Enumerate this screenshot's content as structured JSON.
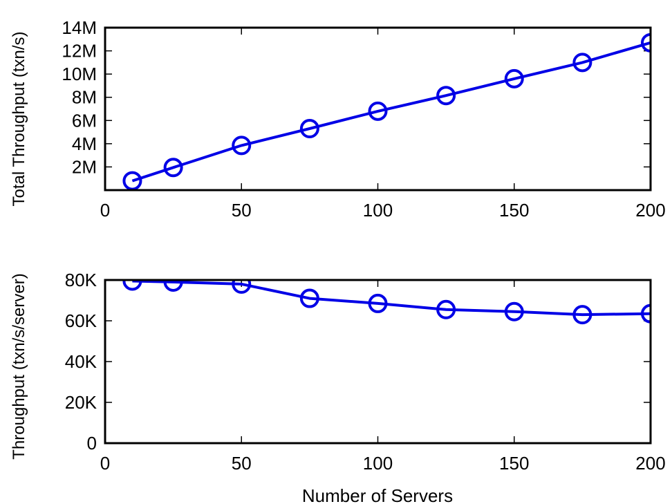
{
  "chart_data": [
    {
      "type": "line",
      "title": "",
      "xlabel": "",
      "ylabel": "Total Throughput (txn/s)",
      "xlim": [
        0,
        200
      ],
      "ylim": [
        0,
        14000000
      ],
      "xticks": [
        0,
        50,
        100,
        150,
        200
      ],
      "xtick_labels": [
        "0",
        "50",
        "100",
        "150",
        "200"
      ],
      "yticks": [
        2000000,
        4000000,
        6000000,
        8000000,
        10000000,
        12000000,
        14000000
      ],
      "ytick_labels": [
        "2M",
        "4M",
        "6M",
        "8M",
        "10M",
        "12M",
        "14M"
      ],
      "grid": false,
      "marker": "circle",
      "color": "#0000e6",
      "series": [
        {
          "x": [
            10,
            25,
            50,
            75,
            100,
            125,
            150,
            175,
            200
          ],
          "values": [
            800000,
            1950000,
            3850000,
            5300000,
            6800000,
            8150000,
            9600000,
            11000000,
            12700000
          ]
        }
      ]
    },
    {
      "type": "line",
      "title": "",
      "xlabel": "Number of Servers",
      "ylabel": "Throughput (txn/s/server)",
      "xlim": [
        0,
        200
      ],
      "ylim": [
        0,
        80000
      ],
      "xticks": [
        0,
        50,
        100,
        150,
        200
      ],
      "xtick_labels": [
        "0",
        "50",
        "100",
        "150",
        "200"
      ],
      "yticks": [
        0,
        20000,
        40000,
        60000,
        80000
      ],
      "ytick_labels": [
        "0",
        "20K",
        "40K",
        "60K",
        "80K"
      ],
      "grid": false,
      "marker": "circle",
      "color": "#0000e6",
      "series": [
        {
          "x": [
            10,
            25,
            50,
            75,
            100,
            125,
            150,
            175,
            200
          ],
          "values": [
            79500,
            79000,
            78000,
            71000,
            68500,
            65500,
            64500,
            63000,
            63500
          ]
        }
      ]
    }
  ]
}
